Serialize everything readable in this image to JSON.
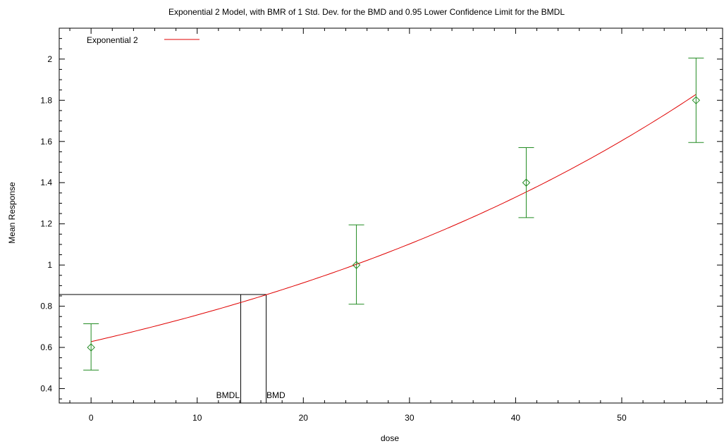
{
  "chart_data": {
    "type": "line",
    "title": "Exponential 2 Model, with BMR of 1 Std. Dev. for the BMD and 0.95 Lower Confidence Limit for the BMDL",
    "xlabel": "dose",
    "ylabel": "Mean Response",
    "xlim": [
      -3,
      59.5
    ],
    "ylim": [
      0.33,
      2.15
    ],
    "x_ticks": [
      0,
      10,
      20,
      30,
      40,
      50
    ],
    "y_ticks": [
      0.4,
      0.6,
      0.8,
      1,
      1.2,
      1.4,
      1.6,
      1.8,
      2
    ],
    "grid": false,
    "legend": {
      "placement": "top-left",
      "entries": [
        {
          "name": "Exponential 2",
          "color": "#e00000"
        }
      ]
    },
    "model": {
      "name": "Exponential 2",
      "form": "a*exp(b*x)",
      "a": 0.628,
      "b": 0.01875,
      "x_range": [
        0,
        57
      ],
      "color": "#e00000"
    },
    "observations": {
      "color": "#228b22",
      "points": [
        {
          "x": 0,
          "mean": 0.6,
          "lower": 0.49,
          "upper": 0.715
        },
        {
          "x": 25,
          "mean": 1.0,
          "lower": 0.81,
          "upper": 1.195
        },
        {
          "x": 41,
          "mean": 1.4,
          "lower": 1.23,
          "upper": 1.57
        },
        {
          "x": 57,
          "mean": 1.8,
          "lower": 1.595,
          "upper": 2.005
        }
      ]
    },
    "bmd": {
      "label": "BMD",
      "x": 16.5,
      "response": 0.857
    },
    "bmdl": {
      "label": "BMDL",
      "x": 14.1
    }
  }
}
